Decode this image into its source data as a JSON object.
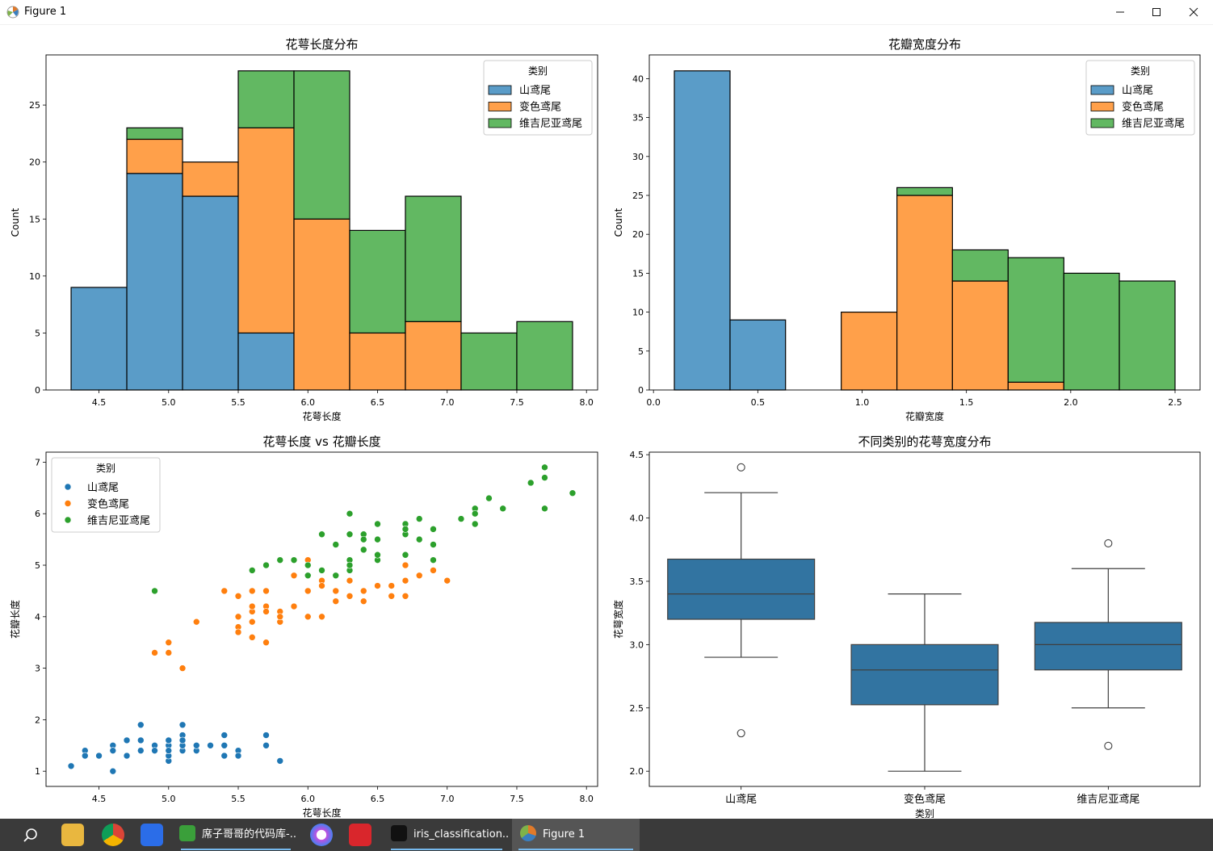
{
  "window": {
    "title": "Figure 1"
  },
  "taskbar": {
    "tasks": [
      {
        "label": "席子哥哥的代码库-...",
        "color": "#3a9f3a"
      },
      {
        "label": "iris_classification....",
        "color": "#111111"
      },
      {
        "label": "Figure 1",
        "color": "#f2a33a"
      }
    ]
  },
  "colors": {
    "blue": "#1f77b4",
    "orange": "#ff7f0e",
    "green": "#2ca02c",
    "box": "#3274a1"
  },
  "chart_data": [
    {
      "type": "bar",
      "stacked": true,
      "title": "花萼长度分布",
      "xlabel": "花萼长度",
      "ylabel": "Count",
      "bin_edges": [
        4.3,
        4.7,
        5.1,
        5.5,
        5.9,
        6.3,
        6.7,
        7.1,
        7.5,
        7.9
      ],
      "series": [
        {
          "name": "山鸢尾",
          "values": [
            9,
            19,
            17,
            5,
            0,
            0,
            0,
            0,
            0
          ]
        },
        {
          "name": "变色鸢尾",
          "values": [
            0,
            3,
            3,
            18,
            15,
            5,
            6,
            0,
            0
          ]
        },
        {
          "name": "维吉尼亚鸢尾",
          "values": [
            0,
            1,
            0,
            5,
            13,
            9,
            11,
            5,
            6
          ]
        }
      ],
      "xticks": [
        "4.5",
        "5.0",
        "5.5",
        "6.0",
        "6.5",
        "7.0",
        "7.5",
        "8.0"
      ],
      "xtick_values": [
        4.5,
        5.0,
        5.5,
        6.0,
        6.5,
        7.0,
        7.5,
        8.0
      ],
      "yticks": [
        "0",
        "5",
        "10",
        "15",
        "20",
        "25"
      ],
      "ytick_values": [
        0,
        5,
        10,
        15,
        20,
        25
      ],
      "xlim": [
        4.12,
        8.08
      ],
      "ylim": [
        0,
        29.4
      ],
      "legend": {
        "title": "类别",
        "position": "top-right"
      }
    },
    {
      "type": "bar",
      "stacked": true,
      "title": "花瓣宽度分布",
      "xlabel": "花瓣宽度",
      "ylabel": "Count",
      "bin_edges": [
        0.1,
        0.367,
        0.633,
        0.9,
        1.167,
        1.433,
        1.7,
        1.967,
        2.233,
        2.5
      ],
      "series": [
        {
          "name": "山鸢尾",
          "values": [
            41,
            9,
            0,
            0,
            0,
            0,
            0,
            0,
            0
          ]
        },
        {
          "name": "变色鸢尾",
          "values": [
            0,
            0,
            0,
            10,
            25,
            14,
            1,
            0,
            0
          ]
        },
        {
          "name": "维吉尼亚鸢尾",
          "values": [
            0,
            0,
            0,
            0,
            1,
            4,
            16,
            15,
            14
          ]
        }
      ],
      "xticks": [
        "0.0",
        "0.5",
        "1.0",
        "1.5",
        "2.0",
        "2.5"
      ],
      "xtick_values": [
        0.0,
        0.5,
        1.0,
        1.5,
        2.0,
        2.5
      ],
      "yticks": [
        "0",
        "5",
        "10",
        "15",
        "20",
        "25",
        "30",
        "35",
        "40"
      ],
      "ytick_values": [
        0,
        5,
        10,
        15,
        20,
        25,
        30,
        35,
        40
      ],
      "xlim": [
        -0.02,
        2.62
      ],
      "ylim": [
        0,
        43.05
      ],
      "legend": {
        "title": "类别",
        "position": "top-right"
      }
    },
    {
      "type": "scatter",
      "title": "花萼长度 vs 花瓣长度",
      "xlabel": "花萼长度",
      "ylabel": "花瓣长度",
      "series": [
        {
          "name": "山鸢尾",
          "points": [
            [
              5.1,
              1.4
            ],
            [
              4.9,
              1.4
            ],
            [
              4.7,
              1.3
            ],
            [
              4.6,
              1.5
            ],
            [
              5.0,
              1.4
            ],
            [
              5.4,
              1.7
            ],
            [
              4.6,
              1.4
            ],
            [
              5.0,
              1.5
            ],
            [
              4.4,
              1.4
            ],
            [
              4.9,
              1.5
            ],
            [
              5.4,
              1.5
            ],
            [
              4.8,
              1.6
            ],
            [
              4.8,
              1.4
            ],
            [
              4.3,
              1.1
            ],
            [
              5.8,
              1.2
            ],
            [
              5.7,
              1.5
            ],
            [
              5.4,
              1.3
            ],
            [
              5.1,
              1.4
            ],
            [
              5.7,
              1.7
            ],
            [
              5.1,
              1.5
            ],
            [
              5.4,
              1.7
            ],
            [
              5.1,
              1.5
            ],
            [
              4.6,
              1.0
            ],
            [
              5.1,
              1.7
            ],
            [
              4.8,
              1.9
            ],
            [
              5.0,
              1.6
            ],
            [
              5.0,
              1.6
            ],
            [
              5.2,
              1.5
            ],
            [
              5.2,
              1.4
            ],
            [
              4.7,
              1.6
            ],
            [
              4.8,
              1.6
            ],
            [
              5.4,
              1.5
            ],
            [
              5.2,
              1.5
            ],
            [
              5.5,
              1.4
            ],
            [
              4.9,
              1.5
            ],
            [
              5.0,
              1.2
            ],
            [
              5.5,
              1.3
            ],
            [
              4.9,
              1.4
            ],
            [
              4.4,
              1.3
            ],
            [
              5.1,
              1.5
            ],
            [
              5.0,
              1.3
            ],
            [
              4.5,
              1.3
            ],
            [
              4.4,
              1.3
            ],
            [
              5.0,
              1.6
            ],
            [
              5.1,
              1.9
            ],
            [
              4.8,
              1.4
            ],
            [
              5.1,
              1.6
            ],
            [
              4.6,
              1.4
            ],
            [
              5.3,
              1.5
            ],
            [
              5.0,
              1.4
            ]
          ]
        },
        {
          "name": "变色鸢尾",
          "points": [
            [
              7.0,
              4.7
            ],
            [
              6.4,
              4.5
            ],
            [
              6.9,
              4.9
            ],
            [
              5.5,
              4.0
            ],
            [
              6.5,
              4.6
            ],
            [
              5.7,
              4.5
            ],
            [
              6.3,
              4.7
            ],
            [
              4.9,
              3.3
            ],
            [
              6.6,
              4.6
            ],
            [
              5.2,
              3.9
            ],
            [
              5.0,
              3.5
            ],
            [
              5.9,
              4.2
            ],
            [
              6.0,
              4.0
            ],
            [
              6.1,
              4.7
            ],
            [
              5.6,
              3.6
            ],
            [
              6.7,
              4.4
            ],
            [
              5.6,
              4.5
            ],
            [
              5.8,
              4.1
            ],
            [
              6.2,
              4.5
            ],
            [
              5.6,
              3.9
            ],
            [
              5.9,
              4.8
            ],
            [
              6.1,
              4.0
            ],
            [
              6.3,
              4.9
            ],
            [
              6.1,
              4.7
            ],
            [
              6.4,
              4.3
            ],
            [
              6.6,
              4.4
            ],
            [
              6.8,
              4.8
            ],
            [
              6.7,
              5.0
            ],
            [
              6.0,
              4.5
            ],
            [
              5.7,
              3.5
            ],
            [
              5.5,
              3.8
            ],
            [
              5.5,
              3.7
            ],
            [
              5.8,
              3.9
            ],
            [
              6.0,
              5.1
            ],
            [
              5.4,
              4.5
            ],
            [
              6.0,
              4.5
            ],
            [
              6.7,
              4.7
            ],
            [
              6.3,
              4.4
            ],
            [
              5.6,
              4.1
            ],
            [
              5.5,
              4.0
            ],
            [
              5.5,
              4.4
            ],
            [
              6.1,
              4.6
            ],
            [
              5.8,
              4.0
            ],
            [
              5.0,
              3.3
            ],
            [
              5.6,
              4.2
            ],
            [
              5.7,
              4.2
            ],
            [
              5.7,
              4.2
            ],
            [
              6.2,
              4.3
            ],
            [
              5.1,
              3.0
            ],
            [
              5.7,
              4.1
            ]
          ]
        },
        {
          "name": "维吉尼亚鸢尾",
          "points": [
            [
              6.3,
              6.0
            ],
            [
              5.8,
              5.1
            ],
            [
              7.1,
              5.9
            ],
            [
              6.3,
              5.6
            ],
            [
              6.5,
              5.8
            ],
            [
              7.6,
              6.6
            ],
            [
              4.9,
              4.5
            ],
            [
              7.3,
              6.3
            ],
            [
              6.7,
              5.8
            ],
            [
              7.2,
              6.1
            ],
            [
              6.5,
              5.1
            ],
            [
              6.4,
              5.3
            ],
            [
              6.8,
              5.5
            ],
            [
              5.7,
              5.0
            ],
            [
              5.8,
              5.1
            ],
            [
              6.4,
              5.3
            ],
            [
              6.5,
              5.5
            ],
            [
              7.7,
              6.7
            ],
            [
              7.7,
              6.9
            ],
            [
              6.0,
              5.0
            ],
            [
              6.9,
              5.7
            ],
            [
              5.6,
              4.9
            ],
            [
              7.7,
              6.7
            ],
            [
              6.3,
              4.9
            ],
            [
              6.7,
              5.7
            ],
            [
              7.2,
              6.0
            ],
            [
              6.2,
              4.8
            ],
            [
              6.1,
              4.9
            ],
            [
              6.4,
              5.6
            ],
            [
              7.2,
              5.8
            ],
            [
              7.4,
              6.1
            ],
            [
              7.9,
              6.4
            ],
            [
              6.4,
              5.6
            ],
            [
              6.3,
              5.1
            ],
            [
              6.1,
              5.6
            ],
            [
              7.7,
              6.1
            ],
            [
              6.3,
              5.6
            ],
            [
              6.4,
              5.5
            ],
            [
              6.0,
              4.8
            ],
            [
              6.9,
              5.4
            ],
            [
              6.7,
              5.6
            ],
            [
              6.9,
              5.1
            ],
            [
              5.8,
              5.1
            ],
            [
              6.8,
              5.9
            ],
            [
              6.7,
              5.7
            ],
            [
              6.7,
              5.2
            ],
            [
              6.3,
              5.0
            ],
            [
              6.5,
              5.2
            ],
            [
              6.2,
              5.4
            ],
            [
              5.9,
              5.1
            ]
          ]
        }
      ],
      "xticks": [
        "4.5",
        "5.0",
        "5.5",
        "6.0",
        "6.5",
        "7.0",
        "7.5",
        "8.0"
      ],
      "xtick_values": [
        4.5,
        5.0,
        5.5,
        6.0,
        6.5,
        7.0,
        7.5,
        8.0
      ],
      "yticks": [
        "1",
        "2",
        "3",
        "4",
        "5",
        "6",
        "7"
      ],
      "ytick_values": [
        1,
        2,
        3,
        4,
        5,
        6,
        7
      ],
      "xlim": [
        4.12,
        8.08
      ],
      "ylim": [
        0.705,
        7.195
      ],
      "legend": {
        "title": "类别",
        "position": "top-left"
      }
    },
    {
      "type": "box",
      "title": "不同类别的花萼宽度分布",
      "xlabel": "类别",
      "ylabel": "花萼宽度",
      "categories": [
        "山鸢尾",
        "变色鸢尾",
        "维吉尼亚鸢尾"
      ],
      "boxes": [
        {
          "whisker_low": 2.9,
          "q1": 3.2,
          "median": 3.4,
          "q3": 3.675,
          "whisker_high": 4.2,
          "outliers": [
            4.4,
            2.3
          ]
        },
        {
          "whisker_low": 2.0,
          "q1": 2.525,
          "median": 2.8,
          "q3": 3.0,
          "whisker_high": 3.4,
          "outliers": []
        },
        {
          "whisker_low": 2.5,
          "q1": 2.8,
          "median": 3.0,
          "q3": 3.175,
          "whisker_high": 3.6,
          "outliers": [
            3.8,
            2.2
          ]
        }
      ],
      "yticks": [
        "2.0",
        "2.5",
        "3.0",
        "3.5",
        "4.0",
        "4.5"
      ],
      "ytick_values": [
        2.0,
        2.5,
        3.0,
        3.5,
        4.0,
        4.5
      ],
      "ylim": [
        1.88,
        4.52
      ]
    }
  ]
}
